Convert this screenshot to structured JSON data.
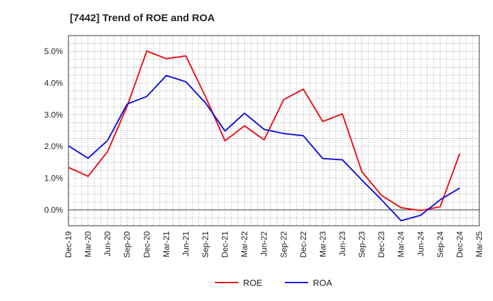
{
  "chart_data": {
    "type": "line",
    "title": "[7442]  Trend of ROE and ROA",
    "xlabel": "",
    "ylabel": "",
    "x": [
      "Dec-19",
      "Mar-20",
      "Jun-20",
      "Sep-20",
      "Dec-20",
      "Mar-21",
      "Jun-21",
      "Sep-21",
      "Dec-21",
      "Mar-22",
      "Jun-22",
      "Sep-22",
      "Dec-22",
      "Mar-23",
      "Jun-23",
      "Sep-23",
      "Dec-23",
      "Mar-24",
      "Jun-24",
      "Sep-24",
      "Dec-24",
      "Mar-25"
    ],
    "ylim": [
      -0.5,
      5.5
    ],
    "yticks": [
      0,
      1,
      2,
      3,
      4,
      5
    ],
    "ytick_labels": [
      "0.0%",
      "1.0%",
      "2.0%",
      "3.0%",
      "4.0%",
      "5.0%"
    ],
    "grid": true,
    "legend_position": "bottom",
    "series": [
      {
        "name": "ROE",
        "color": "#e8141a",
        "values": [
          1.34,
          1.06,
          1.84,
          3.27,
          5.01,
          4.77,
          4.86,
          3.58,
          2.18,
          2.65,
          2.21,
          3.48,
          3.81,
          2.79,
          3.03,
          1.2,
          0.46,
          0.07,
          -0.02,
          0.1,
          1.78,
          null
        ]
      },
      {
        "name": "ROA",
        "color": "#1414d8",
        "values": [
          2.02,
          1.63,
          2.19,
          3.34,
          3.58,
          4.24,
          4.04,
          3.38,
          2.49,
          3.05,
          2.54,
          2.41,
          2.34,
          1.62,
          1.58,
          0.94,
          0.32,
          -0.34,
          -0.17,
          0.32,
          0.69,
          null
        ]
      }
    ]
  }
}
